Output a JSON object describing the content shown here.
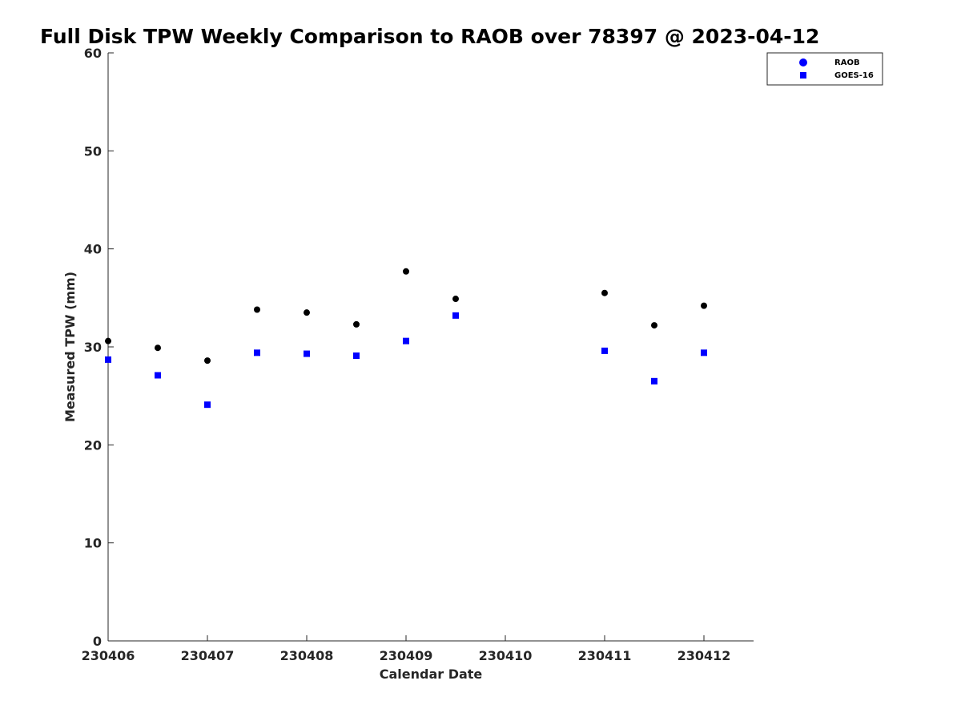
{
  "chart_data": {
    "type": "scatter",
    "title": "Full Disk TPW Weekly Comparison to RAOB over 78397 @ 2023-04-12",
    "xlabel": "Calendar Date",
    "ylabel": "Measured TPW (mm)",
    "x_tick_labels": [
      "230406",
      "230407",
      "230408",
      "230409",
      "230410",
      "230411",
      "230412"
    ],
    "y_ticks": [
      0,
      10,
      20,
      30,
      40,
      50,
      60
    ],
    "xlim": [
      "2023-04-06 00:00",
      "2023-04-12 12:00"
    ],
    "ylim": [
      0,
      60
    ],
    "grid": false,
    "legend_position": "top-right",
    "x": [
      "2023-04-06 00:00",
      "2023-04-06 12:00",
      "2023-04-07 00:00",
      "2023-04-07 12:00",
      "2023-04-08 00:00",
      "2023-04-08 12:00",
      "2023-04-09 00:00",
      "2023-04-09 12:00",
      "2023-04-11 00:00",
      "2023-04-11 12:00",
      "2023-04-12 00:00"
    ],
    "series": [
      {
        "name": "RAOB",
        "marker": "circle",
        "color": "#000000",
        "legend_color": "#0000ff",
        "values": [
          30.6,
          29.9,
          28.6,
          33.8,
          33.5,
          32.3,
          37.7,
          34.9,
          35.5,
          32.2,
          34.2
        ]
      },
      {
        "name": "GOES-16",
        "marker": "square",
        "color": "#0000ff",
        "values": [
          28.7,
          27.1,
          24.1,
          29.4,
          29.3,
          29.1,
          30.6,
          33.2,
          29.6,
          26.5,
          29.4
        ]
      }
    ]
  }
}
